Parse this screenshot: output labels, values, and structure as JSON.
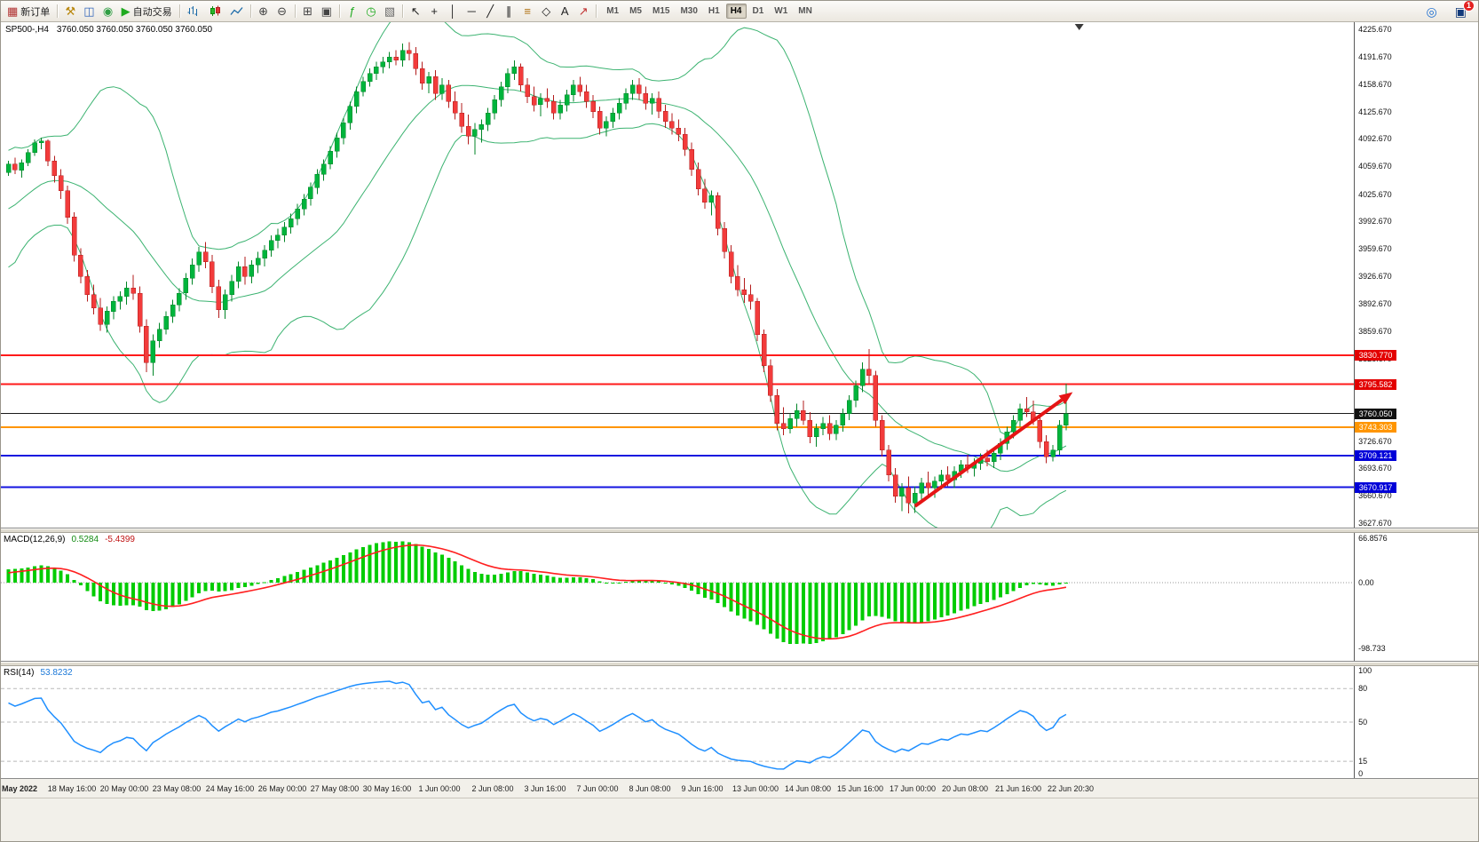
{
  "toolbar": {
    "items": [
      {
        "name": "new-order-button",
        "type": "glyph",
        "glyph": "▦",
        "color": "#b03030",
        "label": "新订单"
      },
      {
        "type": "sep"
      },
      {
        "name": "expert-advisors-button",
        "type": "glyph",
        "glyph": "⚒",
        "color": "#b8860b"
      },
      {
        "name": "profiles-button",
        "type": "glyph",
        "glyph": "◫",
        "color": "#3366bb"
      },
      {
        "name": "community-button",
        "type": "glyph",
        "glyph": "◉",
        "color": "#2f9e44"
      },
      {
        "name": "autotrading-button",
        "type": "glyph",
        "glyph": "▶",
        "color": "#1faa1f",
        "label": "自动交易"
      },
      {
        "type": "sep"
      },
      {
        "name": "bar-chart-button",
        "type": "bars",
        "icon_name": "bar-chart-icon"
      },
      {
        "name": "candlestick-chart-button",
        "type": "candles",
        "icon_name": "candlestick-chart-icon"
      },
      {
        "name": "line-chart-button",
        "type": "line",
        "icon_name": "line-chart-icon"
      },
      {
        "type": "sep"
      },
      {
        "name": "zoom-in-button",
        "type": "glyph",
        "glyph": "⊕",
        "color": "#444"
      },
      {
        "name": "zoom-out-button",
        "type": "glyph",
        "glyph": "⊖",
        "color": "#444"
      },
      {
        "type": "sep"
      },
      {
        "name": "tile-windows-button",
        "type": "glyph",
        "glyph": "⊞",
        "color": "#444"
      },
      {
        "name": "cascade-windows-button",
        "type": "glyph",
        "glyph": "▣",
        "color": "#444"
      },
      {
        "type": "sep"
      },
      {
        "name": "indicators-button",
        "type": "glyph",
        "glyph": "ƒ",
        "color": "#1faa1f"
      },
      {
        "name": "periods-button",
        "type": "glyph",
        "glyph": "◷",
        "color": "#1faa1f"
      },
      {
        "name": "templates-button",
        "type": "glyph",
        "glyph": "▧",
        "color": "#666666"
      },
      {
        "type": "sep"
      },
      {
        "name": "cursor-button",
        "type": "glyph",
        "glyph": "↖",
        "color": "#222222"
      },
      {
        "name": "crosshair-button",
        "type": "glyph",
        "glyph": "+",
        "color": "#222222"
      },
      {
        "name": "vertical-line-button",
        "type": "glyph",
        "glyph": "│",
        "color": "#222222"
      },
      {
        "name": "horizontal-line-button",
        "type": "glyph",
        "glyph": "─",
        "color": "#222222"
      },
      {
        "name": "trendline-button",
        "type": "glyph",
        "glyph": "╱",
        "color": "#222222"
      },
      {
        "name": "channel-button",
        "type": "glyph",
        "glyph": "∥",
        "color": "#222222"
      },
      {
        "name": "fibonacci-button",
        "type": "glyph",
        "glyph": "≡",
        "color": "#b07010"
      },
      {
        "name": "shapes-button",
        "type": "glyph",
        "glyph": "◇",
        "color": "#222222"
      },
      {
        "name": "text-button",
        "type": "glyph",
        "glyph": "A",
        "color": "#222222"
      },
      {
        "name": "arrows-button",
        "type": "glyph",
        "glyph": "↗",
        "color": "#c03030"
      }
    ],
    "timeframes": [
      "M1",
      "M5",
      "M15",
      "M30",
      "H1",
      "H4",
      "D1",
      "W1",
      "MN"
    ],
    "active_timeframe": "H4",
    "right_items": [
      {
        "name": "search-button",
        "glyph": "◎",
        "color": "#1f6fd0"
      },
      {
        "name": "notifications-button",
        "glyph": "▣",
        "color": "#123a7a",
        "badge": "1"
      }
    ]
  },
  "chart_data": {
    "type": "candlestick",
    "symbol_period": "SP500-,H4",
    "info_ohlc": "3760.050 3760.050 3760.050 3760.050",
    "ylim": {
      "max": 4234,
      "min": 3622
    },
    "y_ticks": [
      4225.67,
      4191.67,
      4158.67,
      4125.67,
      4092.67,
      4059.67,
      4025.67,
      3992.67,
      3959.67,
      3926.67,
      3892.67,
      3859.67,
      3826.67,
      3793.67,
      3759.67,
      3726.67,
      3693.67,
      3660.67,
      3627.67
    ],
    "up_color": "#00b43c",
    "down_color": "#f23b3b",
    "up_wick": "#008527",
    "down_wick": "#b31d1d",
    "hlines": [
      {
        "price": 3830.77,
        "color": "#ff1a1a",
        "badge": "#e30000",
        "lw": 2
      },
      {
        "price": 3795.582,
        "color": "#ff1a1a",
        "badge": "#e30000",
        "lw": 2
      },
      {
        "price": 3760.05,
        "color": "#1a1a1a",
        "badge": "#111111",
        "lw": 1
      },
      {
        "price": 3743.303,
        "color": "#ff9500",
        "badge": "#ff9500",
        "lw": 2
      },
      {
        "price": 3709.121,
        "color": "#1414e0",
        "badge": "#0000d8",
        "lw": 2
      },
      {
        "price": 3670.917,
        "color": "#1414e0",
        "badge": "#0000d8",
        "lw": 2
      }
    ],
    "trend_arrow": {
      "from_index": 138,
      "from_price": 3648,
      "to_index": 162,
      "to_price": 3786,
      "color": "#e51515"
    },
    "shift_marker_index": 163,
    "time_labels": [
      "May 2022",
      "18 May 16:00",
      "20 May 00:00",
      "23 May 08:00",
      "24 May 16:00",
      "26 May 00:00",
      "27 May 08:00",
      "30 May 16:00",
      "1 Jun 00:00",
      "2 Jun 08:00",
      "3 Jun 16:00",
      "7 Jun 00:00",
      "8 Jun 08:00",
      "9 Jun 16:00",
      "13 Jun 00:00",
      "14 Jun 08:00",
      "15 Jun 16:00",
      "17 Jun 00:00",
      "20 Jun 08:00",
      "21 Jun 16:00",
      "22 Jun 20:30"
    ],
    "time_start_index": 2,
    "time_step": 8,
    "warmup_closes": [
      3978,
      3962,
      3950,
      3938,
      3944,
      3958,
      3930,
      3948,
      3964,
      3980,
      4000,
      4024,
      4030,
      4018,
      4005,
      3996,
      4010,
      4008,
      4020,
      4035,
      4028,
      4040,
      4052,
      4052
    ],
    "ohlc": [
      [
        4052,
        4066,
        4048,
        4062
      ],
      [
        4062,
        4070,
        4050,
        4055
      ],
      [
        4055,
        4068,
        4046,
        4064
      ],
      [
        4064,
        4080,
        4060,
        4076
      ],
      [
        4076,
        4092,
        4072,
        4088
      ],
      [
        4088,
        4094,
        4080,
        4090
      ],
      [
        4090,
        4092,
        4060,
        4066
      ],
      [
        4066,
        4072,
        4040,
        4048
      ],
      [
        4048,
        4056,
        4020,
        4030
      ],
      [
        4030,
        4036,
        3990,
        3998
      ],
      [
        3998,
        4004,
        3944,
        3952
      ],
      [
        3952,
        3960,
        3918,
        3926
      ],
      [
        3926,
        3934,
        3896,
        3904
      ],
      [
        3904,
        3916,
        3880,
        3888
      ],
      [
        3888,
        3900,
        3860,
        3868
      ],
      [
        3868,
        3890,
        3858,
        3884
      ],
      [
        3884,
        3902,
        3874,
        3896
      ],
      [
        3896,
        3908,
        3886,
        3902
      ],
      [
        3902,
        3920,
        3892,
        3912
      ],
      [
        3912,
        3928,
        3898,
        3906
      ],
      [
        3906,
        3914,
        3858,
        3866
      ],
      [
        3866,
        3874,
        3810,
        3822
      ],
      [
        3822,
        3856,
        3806,
        3848
      ],
      [
        3848,
        3870,
        3840,
        3862
      ],
      [
        3862,
        3884,
        3856,
        3878
      ],
      [
        3878,
        3898,
        3870,
        3892
      ],
      [
        3892,
        3912,
        3884,
        3906
      ],
      [
        3906,
        3930,
        3898,
        3924
      ],
      [
        3924,
        3948,
        3916,
        3940
      ],
      [
        3940,
        3962,
        3932,
        3956
      ],
      [
        3956,
        3968,
        3936,
        3944
      ],
      [
        3944,
        3952,
        3906,
        3914
      ],
      [
        3914,
        3922,
        3876,
        3886
      ],
      [
        3886,
        3910,
        3875,
        3904
      ],
      [
        3904,
        3928,
        3896,
        3920
      ],
      [
        3920,
        3944,
        3912,
        3938
      ],
      [
        3938,
        3950,
        3916,
        3926
      ],
      [
        3926,
        3946,
        3918,
        3940
      ],
      [
        3940,
        3956,
        3930,
        3948
      ],
      [
        3948,
        3964,
        3938,
        3958
      ],
      [
        3958,
        3976,
        3950,
        3970
      ],
      [
        3970,
        3984,
        3960,
        3976
      ],
      [
        3976,
        3992,
        3968,
        3986
      ],
      [
        3986,
        4002,
        3978,
        3996
      ],
      [
        3996,
        4014,
        3988,
        4008
      ],
      [
        4008,
        4026,
        4000,
        4020
      ],
      [
        4020,
        4040,
        4012,
        4034
      ],
      [
        4034,
        4056,
        4026,
        4050
      ],
      [
        4050,
        4068,
        4042,
        4062
      ],
      [
        4062,
        4084,
        4056,
        4078
      ],
      [
        4078,
        4100,
        4070,
        4094
      ],
      [
        4094,
        4118,
        4086,
        4112
      ],
      [
        4112,
        4138,
        4104,
        4132
      ],
      [
        4132,
        4156,
        4124,
        4150
      ],
      [
        4150,
        4168,
        4144,
        4162
      ],
      [
        4162,
        4178,
        4156,
        4172
      ],
      [
        4172,
        4186,
        4164,
        4180
      ],
      [
        4180,
        4192,
        4172,
        4186
      ],
      [
        4186,
        4198,
        4178,
        4192
      ],
      [
        4192,
        4200,
        4182,
        4188
      ],
      [
        4188,
        4208,
        4180,
        4200
      ],
      [
        4200,
        4210,
        4188,
        4196
      ],
      [
        4196,
        4204,
        4170,
        4178
      ],
      [
        4178,
        4186,
        4152,
        4160
      ],
      [
        4160,
        4174,
        4148,
        4168
      ],
      [
        4168,
        4176,
        4140,
        4148
      ],
      [
        4148,
        4166,
        4140,
        4158
      ],
      [
        4158,
        4164,
        4130,
        4138
      ],
      [
        4138,
        4150,
        4116,
        4124
      ],
      [
        4124,
        4136,
        4100,
        4108
      ],
      [
        4108,
        4122,
        4086,
        4096
      ],
      [
        4096,
        4112,
        4074,
        4104
      ],
      [
        4104,
        4116,
        4088,
        4110
      ],
      [
        4110,
        4130,
        4102,
        4124
      ],
      [
        4124,
        4146,
        4116,
        4140
      ],
      [
        4140,
        4162,
        4132,
        4156
      ],
      [
        4156,
        4178,
        4148,
        4172
      ],
      [
        4172,
        4188,
        4164,
        4180
      ],
      [
        4180,
        4184,
        4150,
        4158
      ],
      [
        4158,
        4166,
        4136,
        4144
      ],
      [
        4144,
        4156,
        4126,
        4134
      ],
      [
        4134,
        4148,
        4120,
        4142
      ],
      [
        4142,
        4154,
        4130,
        4138
      ],
      [
        4138,
        4146,
        4116,
        4124
      ],
      [
        4124,
        4140,
        4116,
        4134
      ],
      [
        4134,
        4152,
        4126,
        4146
      ],
      [
        4146,
        4164,
        4138,
        4158
      ],
      [
        4158,
        4168,
        4144,
        4150
      ],
      [
        4150,
        4158,
        4130,
        4138
      ],
      [
        4138,
        4146,
        4118,
        4126
      ],
      [
        4126,
        4132,
        4098,
        4106
      ],
      [
        4106,
        4120,
        4096,
        4114
      ],
      [
        4114,
        4130,
        4106,
        4124
      ],
      [
        4124,
        4142,
        4116,
        4136
      ],
      [
        4136,
        4154,
        4128,
        4148
      ],
      [
        4148,
        4164,
        4140,
        4158
      ],
      [
        4158,
        4166,
        4140,
        4148
      ],
      [
        4148,
        4156,
        4128,
        4136
      ],
      [
        4136,
        4148,
        4122,
        4142
      ],
      [
        4142,
        4150,
        4118,
        4126
      ],
      [
        4126,
        4134,
        4106,
        4114
      ],
      [
        4114,
        4124,
        4098,
        4106
      ],
      [
        4106,
        4116,
        4090,
        4098
      ],
      [
        4098,
        4106,
        4072,
        4080
      ],
      [
        4080,
        4088,
        4048,
        4056
      ],
      [
        4056,
        4064,
        4024,
        4032
      ],
      [
        4032,
        4044,
        4008,
        4016
      ],
      [
        4016,
        4030,
        4000,
        4024
      ],
      [
        4024,
        4028,
        3976,
        3984
      ],
      [
        3984,
        3992,
        3948,
        3956
      ],
      [
        3956,
        3964,
        3918,
        3926
      ],
      [
        3926,
        3940,
        3902,
        3910
      ],
      [
        3910,
        3924,
        3894,
        3904
      ],
      [
        3904,
        3916,
        3886,
        3896
      ],
      [
        3896,
        3900,
        3848,
        3856
      ],
      [
        3856,
        3862,
        3810,
        3818
      ],
      [
        3818,
        3826,
        3774,
        3782
      ],
      [
        3782,
        3790,
        3740,
        3748
      ],
      [
        3748,
        3768,
        3734,
        3742
      ],
      [
        3742,
        3760,
        3736,
        3754
      ],
      [
        3754,
        3772,
        3744,
        3764
      ],
      [
        3764,
        3776,
        3746,
        3752
      ],
      [
        3752,
        3762,
        3724,
        3732
      ],
      [
        3732,
        3748,
        3720,
        3742
      ],
      [
        3742,
        3756,
        3734,
        3748
      ],
      [
        3748,
        3758,
        3728,
        3736
      ],
      [
        3736,
        3752,
        3728,
        3746
      ],
      [
        3746,
        3766,
        3738,
        3760
      ],
      [
        3760,
        3782,
        3752,
        3776
      ],
      [
        3776,
        3800,
        3768,
        3794
      ],
      [
        3794,
        3822,
        3786,
        3814
      ],
      [
        3814,
        3838,
        3796,
        3806
      ],
      [
        3806,
        3812,
        3744,
        3752
      ],
      [
        3752,
        3758,
        3708,
        3716
      ],
      [
        3716,
        3722,
        3678,
        3686
      ],
      [
        3686,
        3694,
        3652,
        3660
      ],
      [
        3660,
        3676,
        3642,
        3670
      ],
      [
        3670,
        3684,
        3639,
        3652
      ],
      [
        3652,
        3672,
        3640,
        3664
      ],
      [
        3664,
        3682,
        3654,
        3676
      ],
      [
        3676,
        3690,
        3662,
        3670
      ],
      [
        3670,
        3684,
        3658,
        3678
      ],
      [
        3678,
        3692,
        3668,
        3686
      ],
      [
        3686,
        3696,
        3672,
        3680
      ],
      [
        3680,
        3696,
        3670,
        3690
      ],
      [
        3690,
        3704,
        3682,
        3698
      ],
      [
        3698,
        3710,
        3688,
        3694
      ],
      [
        3694,
        3706,
        3684,
        3700
      ],
      [
        3700,
        3712,
        3692,
        3706
      ],
      [
        3706,
        3716,
        3696,
        3702
      ],
      [
        3702,
        3718,
        3694,
        3712
      ],
      [
        3712,
        3730,
        3704,
        3724
      ],
      [
        3724,
        3744,
        3716,
        3738
      ],
      [
        3738,
        3758,
        3730,
        3752
      ],
      [
        3752,
        3772,
        3744,
        3766
      ],
      [
        3766,
        3780,
        3756,
        3762
      ],
      [
        3762,
        3776,
        3746,
        3752
      ],
      [
        3752,
        3758,
        3718,
        3726
      ],
      [
        3726,
        3734,
        3700,
        3708
      ],
      [
        3708,
        3722,
        3702,
        3716
      ],
      [
        3716,
        3752,
        3710,
        3746
      ],
      [
        3746,
        3796,
        3740,
        3760.05
      ]
    ],
    "indicators": {
      "bollinger": {
        "period": 20,
        "deviation": 2,
        "color": "#3cb371"
      },
      "macd": {
        "label": "MACD(12,26,9)",
        "value_main": "0.5284",
        "value_signal": "-5.4399",
        "fast": 12,
        "slow": 26,
        "signal": 9,
        "hist_color": "#00cc00",
        "signal_color": "#ff1f1f",
        "scale": {
          "max": 75,
          "min": -118
        },
        "ticks": [
          {
            "v": 66.8576,
            "label": "66.8576"
          },
          {
            "v": 0,
            "label": "0.00"
          },
          {
            "v": -98.733,
            "label": "-98.733"
          }
        ]
      },
      "rsi": {
        "label": "RSI(14)",
        "value": "53.8232",
        "period": 14,
        "color": "#1f8fff",
        "scale": {
          "max": 100,
          "min": 0
        },
        "levels": [
          80,
          50,
          15
        ],
        "ticks": [
          {
            "v": 100,
            "label": "100"
          },
          {
            "v": 80,
            "label": "80"
          },
          {
            "v": 50,
            "label": "50"
          },
          {
            "v": 15,
            "label": "15"
          },
          {
            "v": 0,
            "label": "0"
          }
        ]
      }
    }
  }
}
